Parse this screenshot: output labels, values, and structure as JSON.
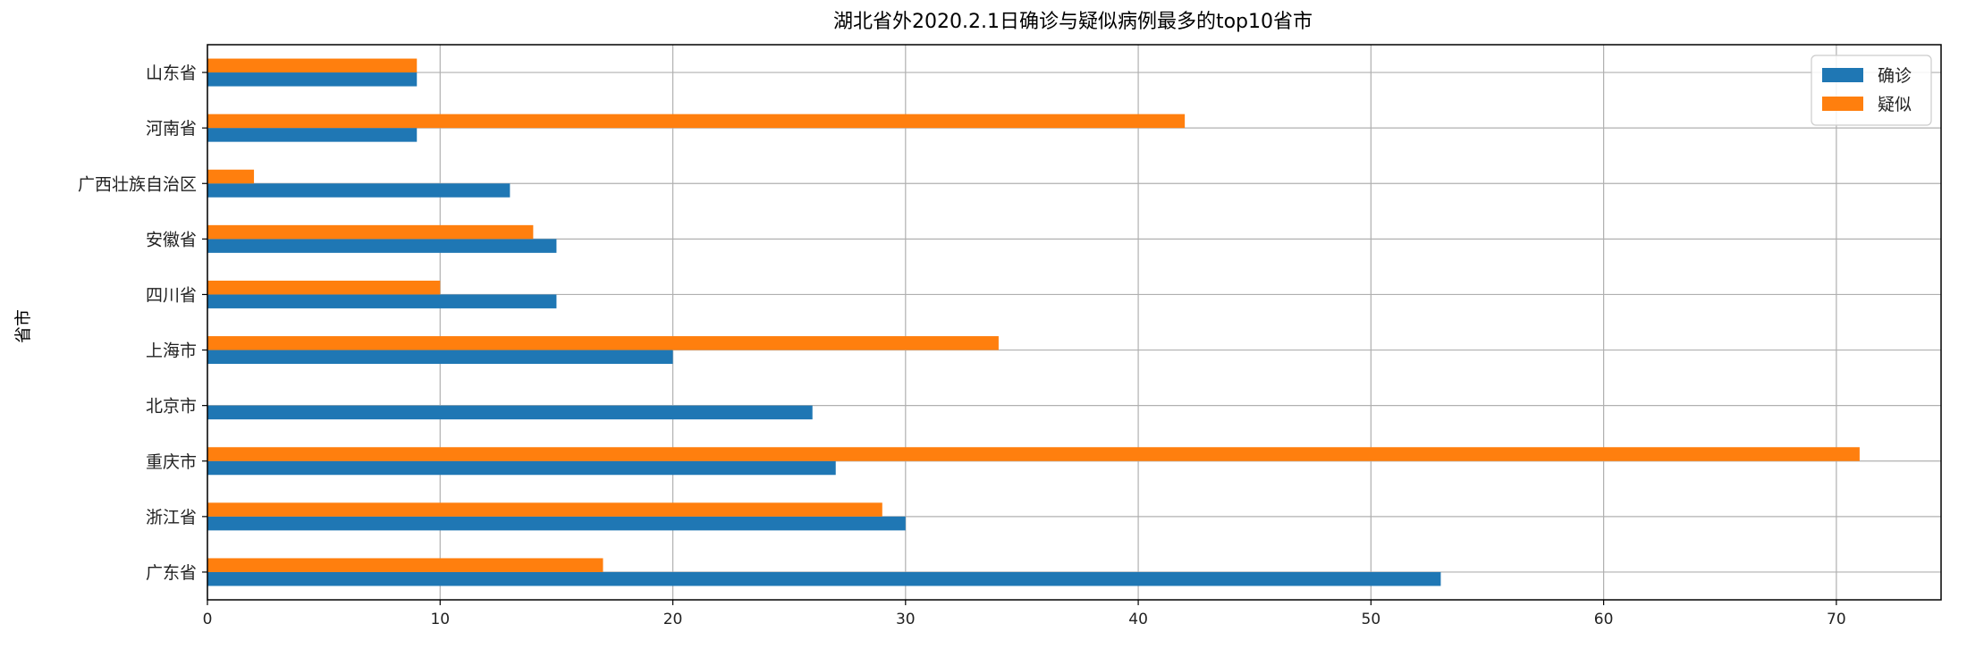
{
  "chart_data": {
    "type": "bar",
    "orientation": "horizontal",
    "title": "湖北省外2020.2.1日确诊与疑似病例最多的top10省市",
    "xlabel": "",
    "ylabel": "省市",
    "xlim": [
      0,
      74.5
    ],
    "xticks": [
      0,
      10,
      20,
      30,
      40,
      50,
      60,
      70
    ],
    "grid": true,
    "legend_position": "top-right",
    "categories": [
      "山东省",
      "河南省",
      "广西壮族自治区",
      "安徽省",
      "四川省",
      "上海市",
      "北京市",
      "重庆市",
      "浙江省",
      "广东省"
    ],
    "series": [
      {
        "name": "确诊",
        "color": "#1f77b4",
        "values": [
          9,
          9,
          13,
          15,
          15,
          20,
          26,
          27,
          30,
          53
        ]
      },
      {
        "name": "疑似",
        "color": "#ff7f0e",
        "values": [
          9,
          42,
          2,
          14,
          10,
          34,
          0,
          71,
          29,
          17
        ]
      }
    ]
  }
}
